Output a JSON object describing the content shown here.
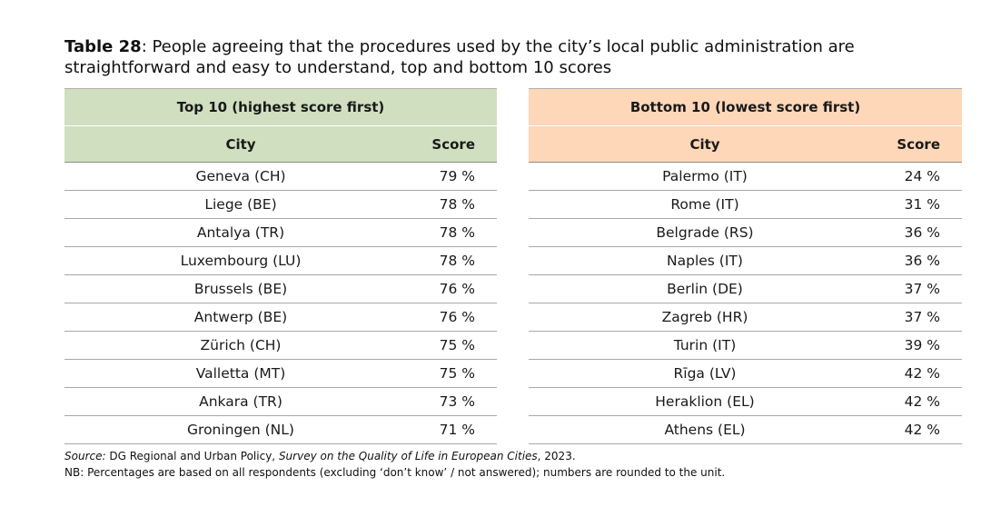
{
  "caption": {
    "label": "Table 28",
    "text": ": People agreeing that the procedures used by the city’s local public administration are straightforward and easy to understand, top and bottom 10 scores"
  },
  "top10": {
    "header": "Top 10 (highest score first)",
    "col_city": "City",
    "col_score": "Score",
    "rows": [
      {
        "city": "Geneva (CH)",
        "score": "79 %"
      },
      {
        "city": "Liege (BE)",
        "score": "78 %"
      },
      {
        "city": "Antalya (TR)",
        "score": "78 %"
      },
      {
        "city": "Luxembourg (LU)",
        "score": "78 %"
      },
      {
        "city": "Brussels (BE)",
        "score": "76 %"
      },
      {
        "city": "Antwerp (BE)",
        "score": "76 %"
      },
      {
        "city": "Zürich (CH)",
        "score": "75 %"
      },
      {
        "city": "Valletta (MT)",
        "score": "75 %"
      },
      {
        "city": "Ankara (TR)",
        "score": "73 %"
      },
      {
        "city": "Groningen (NL)",
        "score": "71 %"
      }
    ]
  },
  "bottom10": {
    "header": "Bottom 10 (lowest score first)",
    "col_city": "City",
    "col_score": "Score",
    "rows": [
      {
        "city": "Palermo (IT)",
        "score": "24 %"
      },
      {
        "city": "Rome (IT)",
        "score": "31 %"
      },
      {
        "city": "Belgrade (RS)",
        "score": "36 %"
      },
      {
        "city": "Naples (IT)",
        "score": "36 %"
      },
      {
        "city": "Berlin (DE)",
        "score": "37 %"
      },
      {
        "city": "Zagreb (HR)",
        "score": "37 %"
      },
      {
        "city": "Turin (IT)",
        "score": "39 %"
      },
      {
        "city": "Rīga (LV)",
        "score": "42 %"
      },
      {
        "city": "Heraklion (EL)",
        "score": "42 %"
      },
      {
        "city": "Athens (EL)",
        "score": "42 %"
      }
    ]
  },
  "source": {
    "label": "Source:",
    "agency": " DG Regional and Urban Policy, ",
    "survey": "Survey on the Quality of Life in European Cities",
    "year": ", 2023."
  },
  "note": "NB: Percentages are based on all respondents (excluding ‘don’t know’ / not answered); numbers are rounded to the unit.",
  "colors": {
    "top_header_bg": "#d0dfbf",
    "bottom_header_bg": "#fdd7b8"
  }
}
